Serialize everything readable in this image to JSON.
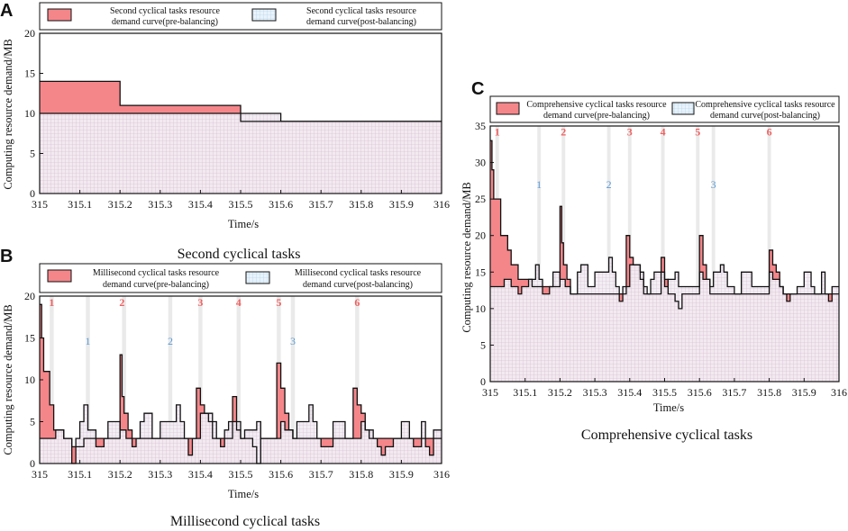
{
  "colors": {
    "pre_fill": "#f4868a",
    "post_fill": "#dcebf6",
    "grid_pre": "#e6a8b8",
    "grid_post": "#a9cde8",
    "stroke": "#111111",
    "shade": "#e6e6e6",
    "label_red": "#f06060",
    "label_blue": "#5b9bd5"
  },
  "chart_data": [
    {
      "panel": "A",
      "type": "area",
      "caption": "Second cyclical tasks",
      "xlabel": "Time/s",
      "ylabel": "Computing resource demand/MB",
      "xlim": [
        315,
        316
      ],
      "ylim": [
        0,
        20
      ],
      "xticks": [
        "315",
        "315.1",
        "315.2",
        "315.3",
        "315.4",
        "315.5",
        "315.6",
        "315.7",
        "315.8",
        "315.9",
        "316"
      ],
      "yticks": [
        "0",
        "5",
        "10",
        "15",
        "20"
      ],
      "legend": {
        "pre_lines": [
          "Second cyclical tasks resource",
          "demand curve(pre-balancing)"
        ],
        "post_lines": [
          "Second cyclical tasks resource",
          "demand curve(post-balancing)"
        ]
      },
      "series": [
        {
          "name": "pre-balancing",
          "steps": [
            [
              315,
              14
            ],
            [
              315.2,
              11
            ],
            [
              315.5,
              9
            ],
            [
              316,
              9
            ]
          ]
        },
        {
          "name": "post-balancing",
          "steps": [
            [
              315,
              10
            ],
            [
              315.5,
              10
            ],
            [
              315.6,
              9
            ],
            [
              316,
              9
            ]
          ]
        }
      ],
      "shaded_intervals": [],
      "markers": []
    },
    {
      "panel": "B",
      "type": "area",
      "caption": "Millisecond cyclical tasks",
      "xlabel": "Time/s",
      "ylabel": "Computing resource demand/MB",
      "xlim": [
        315,
        316
      ],
      "ylim": [
        0,
        20
      ],
      "xticks": [
        "315",
        "315.1",
        "315.2",
        "315.3",
        "315.4",
        "315.5",
        "315.6",
        "315.7",
        "315.8",
        "315.9",
        "316"
      ],
      "yticks": [
        "0",
        "5",
        "10",
        "15",
        "20"
      ],
      "legend": {
        "pre_lines": [
          "Millisecond cyclical tasks resource",
          "demand curve(pre-balancing)"
        ],
        "post_lines": [
          "Millisecond cyclical tasks resource",
          "demand curve(post-balancing)"
        ]
      },
      "series": [
        {
          "name": "pre-balancing",
          "steps": [
            [
              315,
              19
            ],
            [
              315.005,
              15
            ],
            [
              315.01,
              11
            ],
            [
              315.025,
              7
            ],
            [
              315.035,
              4
            ],
            [
              315.06,
              3
            ],
            [
              315.08,
              2
            ],
            [
              315.11,
              3
            ],
            [
              315.2,
              13
            ],
            [
              315.205,
              8
            ],
            [
              315.21,
              6
            ],
            [
              315.22,
              4
            ],
            [
              315.23,
              3
            ],
            [
              315.39,
              9
            ],
            [
              315.4,
              7
            ],
            [
              315.41,
              6
            ],
            [
              315.42,
              5
            ],
            [
              315.43,
              3
            ],
            [
              315.48,
              8
            ],
            [
              315.49,
              4
            ],
            [
              315.5,
              3
            ],
            [
              315.53,
              2
            ],
            [
              315.54,
              0
            ],
            [
              315.55,
              3
            ],
            [
              315.59,
              12
            ],
            [
              315.6,
              9
            ],
            [
              315.61,
              6
            ],
            [
              315.62,
              4
            ],
            [
              315.63,
              3
            ],
            [
              315.78,
              9
            ],
            [
              315.79,
              7
            ],
            [
              315.8,
              6
            ],
            [
              315.81,
              4
            ],
            [
              315.82,
              3
            ],
            [
              316,
              3
            ]
          ]
        },
        {
          "name": "post-balancing",
          "steps": [
            [
              315,
              3
            ],
            [
              315.04,
              4
            ],
            [
              315.06,
              3
            ],
            [
              315.08,
              0
            ],
            [
              315.09,
              3
            ],
            [
              315.1,
              5
            ],
            [
              315.11,
              7
            ],
            [
              315.12,
              4
            ],
            [
              315.14,
              2
            ],
            [
              315.16,
              3
            ],
            [
              315.17,
              5
            ],
            [
              315.2,
              4
            ],
            [
              315.215,
              3
            ],
            [
              315.23,
              2
            ],
            [
              315.24,
              3
            ],
            [
              315.25,
              5
            ],
            [
              315.26,
              6
            ],
            [
              315.28,
              3
            ],
            [
              315.3,
              5
            ],
            [
              315.34,
              7
            ],
            [
              315.35,
              5
            ],
            [
              315.36,
              3
            ],
            [
              315.37,
              1
            ],
            [
              315.38,
              3
            ],
            [
              315.4,
              6
            ],
            [
              315.43,
              5
            ],
            [
              315.44,
              3
            ],
            [
              315.45,
              2
            ],
            [
              315.46,
              4
            ],
            [
              315.47,
              5
            ],
            [
              315.5,
              3
            ],
            [
              315.51,
              4
            ],
            [
              315.54,
              5
            ],
            [
              315.55,
              3
            ],
            [
              315.6,
              5
            ],
            [
              315.61,
              4
            ],
            [
              315.63,
              3
            ],
            [
              315.64,
              5
            ],
            [
              315.67,
              7
            ],
            [
              315.68,
              5
            ],
            [
              315.69,
              3
            ],
            [
              315.7,
              2
            ],
            [
              315.73,
              5
            ],
            [
              315.76,
              3
            ],
            [
              315.8,
              5
            ],
            [
              315.81,
              4
            ],
            [
              315.83,
              3
            ],
            [
              315.84,
              2
            ],
            [
              315.85,
              1
            ],
            [
              315.86,
              2
            ],
            [
              315.88,
              3
            ],
            [
              315.9,
              5
            ],
            [
              315.92,
              3
            ],
            [
              315.93,
              2
            ],
            [
              315.95,
              5
            ],
            [
              315.96,
              2
            ],
            [
              315.97,
              1
            ],
            [
              315.98,
              4
            ],
            [
              316,
              4
            ]
          ]
        }
      ],
      "shaded_intervals": [
        [
          315.025,
          315.035
        ],
        [
          315.115,
          315.125
        ],
        [
          315.205,
          315.215
        ],
        [
          315.32,
          315.33
        ],
        [
          315.395,
          315.405
        ],
        [
          315.49,
          315.5
        ],
        [
          315.59,
          315.6
        ],
        [
          315.625,
          315.635
        ],
        [
          315.785,
          315.795
        ]
      ],
      "markers": [
        {
          "label": "1",
          "x": 315.03,
          "y": 18.8,
          "color": "red"
        },
        {
          "label": "2",
          "x": 315.205,
          "y": 18.8,
          "color": "red"
        },
        {
          "label": "3",
          "x": 315.4,
          "y": 18.8,
          "color": "red"
        },
        {
          "label": "4",
          "x": 315.495,
          "y": 18.8,
          "color": "red"
        },
        {
          "label": "5",
          "x": 315.595,
          "y": 18.8,
          "color": "red"
        },
        {
          "label": "6",
          "x": 315.79,
          "y": 18.8,
          "color": "red"
        },
        {
          "label": "1",
          "x": 315.12,
          "y": 14.2,
          "color": "blue"
        },
        {
          "label": "2",
          "x": 315.325,
          "y": 14.2,
          "color": "blue"
        },
        {
          "label": "3",
          "x": 315.63,
          "y": 14.2,
          "color": "blue"
        }
      ]
    },
    {
      "panel": "C",
      "type": "area",
      "caption": "Comprehensive cyclical tasks",
      "xlabel": "Time/s",
      "ylabel": "Computing resource demand/MB",
      "xlim": [
        315,
        316
      ],
      "ylim": [
        0,
        35
      ],
      "xticks": [
        "315",
        "315.1",
        "315.2",
        "315.3",
        "315.4",
        "315.5",
        "315.6",
        "315.7",
        "315.8",
        "315.9",
        "316"
      ],
      "yticks": [
        "0",
        "5",
        "10",
        "15",
        "20",
        "25",
        "30",
        "35"
      ],
      "legend": {
        "pre_lines": [
          "Comprehensive cyclical tasks resource",
          "demand curve(pre-balancing)"
        ],
        "post_lines": [
          "Comprehensive cyclical tasks resource",
          "demand curve(post-balancing)"
        ]
      },
      "series": [
        {
          "name": "pre-balancing",
          "steps": [
            [
              315,
              33
            ],
            [
              315.005,
              29
            ],
            [
              315.01,
              25
            ],
            [
              315.03,
              20
            ],
            [
              315.05,
              18
            ],
            [
              315.06,
              16
            ],
            [
              315.08,
              14
            ],
            [
              315.12,
              13
            ],
            [
              315.2,
              24
            ],
            [
              315.205,
              19
            ],
            [
              315.21,
              16
            ],
            [
              315.22,
              14
            ],
            [
              315.23,
              12
            ],
            [
              315.39,
              20
            ],
            [
              315.4,
              17
            ],
            [
              315.41,
              16
            ],
            [
              315.43,
              14
            ],
            [
              315.44,
              12
            ],
            [
              315.49,
              17
            ],
            [
              315.5,
              14
            ],
            [
              315.51,
              12
            ],
            [
              315.53,
              11
            ],
            [
              315.54,
              10
            ],
            [
              315.55,
              12
            ],
            [
              315.6,
              20
            ],
            [
              315.61,
              16
            ],
            [
              315.62,
              14
            ],
            [
              315.63,
              12
            ],
            [
              315.8,
              18
            ],
            [
              315.81,
              16
            ],
            [
              315.82,
              15
            ],
            [
              315.83,
              13
            ],
            [
              315.84,
              12
            ],
            [
              316,
              12
            ]
          ]
        },
        {
          "name": "post-balancing",
          "steps": [
            [
              315,
              13
            ],
            [
              315.04,
              14
            ],
            [
              315.06,
              13
            ],
            [
              315.08,
              12
            ],
            [
              315.09,
              13
            ],
            [
              315.11,
              14
            ],
            [
              315.13,
              16
            ],
            [
              315.14,
              14
            ],
            [
              315.15,
              12
            ],
            [
              315.17,
              13
            ],
            [
              315.18,
              15
            ],
            [
              315.2,
              14
            ],
            [
              315.215,
              13
            ],
            [
              315.23,
              12
            ],
            [
              315.25,
              15
            ],
            [
              315.26,
              16
            ],
            [
              315.28,
              13
            ],
            [
              315.3,
              15
            ],
            [
              315.34,
              17
            ],
            [
              315.35,
              15
            ],
            [
              315.36,
              13
            ],
            [
              315.37,
              11
            ],
            [
              315.38,
              13
            ],
            [
              315.4,
              16
            ],
            [
              315.43,
              15
            ],
            [
              315.44,
              13
            ],
            [
              315.45,
              12
            ],
            [
              315.46,
              14
            ],
            [
              315.47,
              15
            ],
            [
              315.5,
              13
            ],
            [
              315.51,
              14
            ],
            [
              315.53,
              15
            ],
            [
              315.54,
              13
            ],
            [
              315.6,
              15
            ],
            [
              315.61,
              14
            ],
            [
              315.63,
              13
            ],
            [
              315.64,
              15
            ],
            [
              315.66,
              16
            ],
            [
              315.67,
              15
            ],
            [
              315.68,
              13
            ],
            [
              315.7,
              12
            ],
            [
              315.72,
              15
            ],
            [
              315.75,
              13
            ],
            [
              315.8,
              15
            ],
            [
              315.81,
              14
            ],
            [
              315.83,
              13
            ],
            [
              315.84,
              12
            ],
            [
              315.85,
              11
            ],
            [
              315.86,
              12
            ],
            [
              315.88,
              13
            ],
            [
              315.9,
              15
            ],
            [
              315.92,
              13
            ],
            [
              315.93,
              12
            ],
            [
              315.95,
              15
            ],
            [
              315.96,
              12
            ],
            [
              315.97,
              11
            ],
            [
              315.98,
              13
            ],
            [
              316,
              13
            ]
          ]
        }
      ],
      "shaded_intervals": [
        [
          315.015,
          315.025
        ],
        [
          315.135,
          315.145
        ],
        [
          315.205,
          315.215
        ],
        [
          315.335,
          315.345
        ],
        [
          315.395,
          315.405
        ],
        [
          315.49,
          315.5
        ],
        [
          315.59,
          315.6
        ],
        [
          315.635,
          315.645
        ],
        [
          315.795,
          315.805
        ]
      ],
      "markers": [
        {
          "label": "1",
          "x": 315.02,
          "y": 33.7,
          "color": "red"
        },
        {
          "label": "2",
          "x": 315.21,
          "y": 33.7,
          "color": "red"
        },
        {
          "label": "3",
          "x": 315.4,
          "y": 33.7,
          "color": "red"
        },
        {
          "label": "4",
          "x": 315.495,
          "y": 33.7,
          "color": "red"
        },
        {
          "label": "5",
          "x": 315.595,
          "y": 33.7,
          "color": "red"
        },
        {
          "label": "6",
          "x": 315.8,
          "y": 33.7,
          "color": "red"
        },
        {
          "label": "1",
          "x": 315.14,
          "y": 26.5,
          "color": "blue"
        },
        {
          "label": "2",
          "x": 315.34,
          "y": 26.5,
          "color": "blue"
        },
        {
          "label": "3",
          "x": 315.64,
          "y": 26.5,
          "color": "blue"
        }
      ]
    }
  ]
}
